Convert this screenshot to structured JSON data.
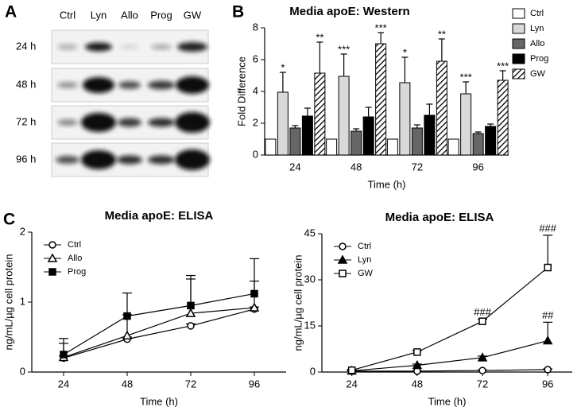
{
  "blot": {
    "panel_label": "A",
    "lanes": [
      "Ctrl",
      "Lyn",
      "Allo",
      "Prog",
      "GW"
    ],
    "rows": [
      "24 h",
      "48 h",
      "72 h",
      "96 h"
    ]
  },
  "chart_data": [
    {
      "type": "bar",
      "panel_label": "B",
      "title": "Media apoE: Western",
      "x_label": "Time (h)",
      "y_label": "Fold Difference",
      "categories": [
        "24",
        "48",
        "72",
        "96"
      ],
      "ylim": [
        0,
        8
      ],
      "yticks": [
        0,
        2,
        4,
        6,
        8
      ],
      "legend": "right",
      "series": [
        {
          "name": "Ctrl",
          "color": "#ffffff",
          "values": [
            1,
            1,
            1,
            1
          ],
          "errors": [
            0,
            0,
            0,
            0
          ],
          "labels": [
            null,
            null,
            null,
            null
          ]
        },
        {
          "name": "Lyn",
          "color": "#d9d9d9",
          "values": [
            3.95,
            4.95,
            4.55,
            3.85
          ],
          "errors": [
            1.25,
            1.4,
            1.6,
            0.75
          ],
          "labels": [
            "*",
            "***",
            "*",
            "***"
          ]
        },
        {
          "name": "Allo",
          "color": "#666666",
          "values": [
            1.7,
            1.5,
            1.7,
            1.35
          ],
          "errors": [
            0.15,
            0.15,
            0.2,
            0.1
          ],
          "labels": [
            null,
            null,
            null,
            null
          ]
        },
        {
          "name": "Prog",
          "color": "#000000",
          "values": [
            2.45,
            2.4,
            2.5,
            1.8
          ],
          "errors": [
            0.5,
            0.6,
            0.7,
            0.15
          ],
          "labels": [
            null,
            null,
            null,
            null
          ]
        },
        {
          "name": "GW",
          "color": "#000000",
          "pattern": "hatch",
          "values": [
            5.15,
            7.0,
            5.9,
            4.7
          ],
          "errors": [
            1.95,
            0.7,
            1.4,
            0.6
          ],
          "labels": [
            "**",
            "***",
            "**",
            "***"
          ]
        }
      ]
    },
    {
      "type": "line",
      "panel_label": "C",
      "title": "Media apoE: ELISA",
      "x_label": "Time (h)",
      "y_label": "ng/mL/µg cell protein",
      "x": [
        24,
        48,
        72,
        96
      ],
      "xlim": [
        12,
        108
      ],
      "xticks": [
        24,
        48,
        72,
        96
      ],
      "ylim": [
        0,
        2
      ],
      "yticks": [
        0,
        1,
        2
      ],
      "legend": "upper left",
      "series": [
        {
          "name": "Ctrl",
          "color": "#000000",
          "marker": "circle",
          "filled": false,
          "values": [
            0.2,
            0.47,
            0.66,
            0.9
          ],
          "errors": [
            0.03,
            0.03,
            0.03,
            0.03
          ]
        },
        {
          "name": "Allo",
          "color": "#000000",
          "marker": "triangle",
          "filled": false,
          "values": [
            0.21,
            0.52,
            0.84,
            0.92
          ],
          "errors": [
            0.2,
            0.3,
            0.54,
            0.38
          ]
        },
        {
          "name": "Prog",
          "color": "#000000",
          "marker": "square",
          "filled": true,
          "values": [
            0.25,
            0.8,
            0.95,
            1.12
          ],
          "errors": [
            0.23,
            0.33,
            0.38,
            0.5
          ]
        }
      ]
    },
    {
      "type": "line",
      "title": "Media apoE: ELISA",
      "x_label": "Time (h)",
      "y_label": "ng/mL/µg cell protein",
      "x": [
        24,
        48,
        72,
        96
      ],
      "xlim": [
        13,
        105
      ],
      "xticks": [
        24,
        48,
        72,
        96
      ],
      "ylim": [
        0,
        45
      ],
      "yticks": [
        0,
        15,
        30,
        45
      ],
      "legend": "upper left",
      "series": [
        {
          "name": "Ctrl",
          "color": "#000000",
          "marker": "circle",
          "filled": false,
          "values": [
            0.3,
            0.3,
            0.5,
            0.8
          ],
          "errors": [
            0.1,
            0.1,
            0.2,
            0.2
          ],
          "labels": [
            null,
            null,
            null,
            null
          ]
        },
        {
          "name": "Lyn",
          "color": "#000000",
          "marker": "triangle",
          "filled": true,
          "values": [
            0.4,
            2.2,
            4.7,
            10.2
          ],
          "errors": [
            0.2,
            0.4,
            0.5,
            6
          ],
          "labels": [
            null,
            null,
            null,
            "##"
          ]
        },
        {
          "name": "GW",
          "color": "#000000",
          "marker": "square",
          "filled": false,
          "values": [
            0.6,
            6.5,
            16.5,
            34
          ],
          "errors": [
            0.3,
            0.5,
            0.7,
            10.5
          ],
          "labels": [
            null,
            null,
            "###",
            "###"
          ]
        }
      ]
    }
  ]
}
